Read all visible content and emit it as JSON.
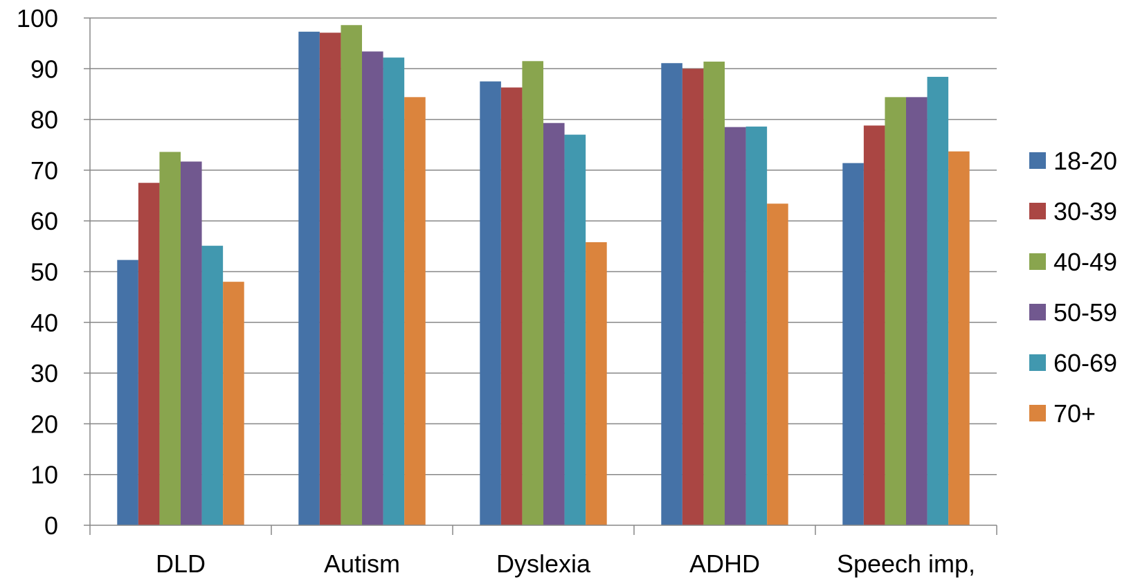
{
  "chart_data": {
    "type": "bar",
    "title": "",
    "xlabel": "",
    "ylabel": "",
    "ylim": [
      0,
      100
    ],
    "yticks": [
      0,
      10,
      20,
      30,
      40,
      50,
      60,
      70,
      80,
      90,
      100
    ],
    "grid": true,
    "legend_position": "right",
    "categories": [
      "DLD",
      "Autism",
      "Dyslexia",
      "ADHD",
      "Speech imp,"
    ],
    "series": [
      {
        "name": "18-20",
        "color": "#4572A7",
        "values": [
          52.3,
          97.3,
          87.5,
          91.1,
          71.4
        ]
      },
      {
        "name": "30-39",
        "color": "#AA4643",
        "values": [
          67.5,
          97.1,
          86.3,
          90.0,
          78.8
        ]
      },
      {
        "name": "40-49",
        "color": "#89A54E",
        "values": [
          73.6,
          98.6,
          91.5,
          91.4,
          84.4
        ]
      },
      {
        "name": "50-59",
        "color": "#71588F",
        "values": [
          71.7,
          93.4,
          79.3,
          78.5,
          84.4
        ]
      },
      {
        "name": "60-69",
        "color": "#4198AF",
        "values": [
          55.1,
          92.2,
          77.0,
          78.6,
          88.4
        ]
      },
      {
        "name": "70+",
        "color": "#DB843D",
        "values": [
          48.0,
          84.4,
          55.8,
          63.4,
          73.7
        ]
      }
    ]
  }
}
